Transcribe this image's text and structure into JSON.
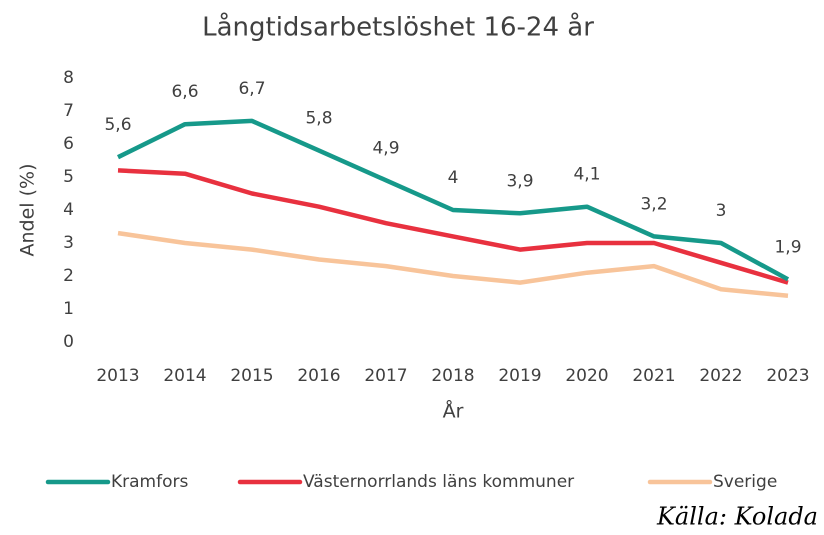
{
  "chart_data": {
    "type": "line",
    "title": "Långtidsarbetslöshet 16-24 år",
    "x_label": "År",
    "y_label": "Andel (%)",
    "source": "Källa: Kolada",
    "categories": [
      "2013",
      "2014",
      "2015",
      "2016",
      "2017",
      "2018",
      "2019",
      "2020",
      "2021",
      "2022",
      "2023"
    ],
    "ylim": [
      0,
      8
    ],
    "yticks": [
      0,
      1,
      2,
      3,
      4,
      5,
      6,
      7,
      8
    ],
    "grid": false,
    "legend": "bottom",
    "series": [
      {
        "name": "Kramfors",
        "color": "#16998a",
        "values": [
          5.6,
          6.6,
          6.7,
          5.8,
          4.9,
          4,
          3.9,
          4.1,
          3.2,
          3,
          1.9
        ],
        "value_labels": [
          "5,6",
          "6,6",
          "6,7",
          "5,8",
          "4,9",
          "4",
          "3,9",
          "4,1",
          "3,2",
          "3",
          "1,9"
        ]
      },
      {
        "name": "Västernorrlands läns kommuner",
        "color": "#e8313f",
        "values": [
          5.2,
          5.1,
          4.5,
          4.1,
          3.6,
          3.2,
          2.8,
          3.0,
          3.0,
          2.4,
          1.8
        ]
      },
      {
        "name": "Sverige",
        "color": "#f8c49a",
        "values": [
          3.3,
          3.0,
          2.8,
          2.5,
          2.3,
          2.0,
          1.8,
          2.1,
          2.3,
          1.6,
          1.4
        ]
      }
    ]
  }
}
